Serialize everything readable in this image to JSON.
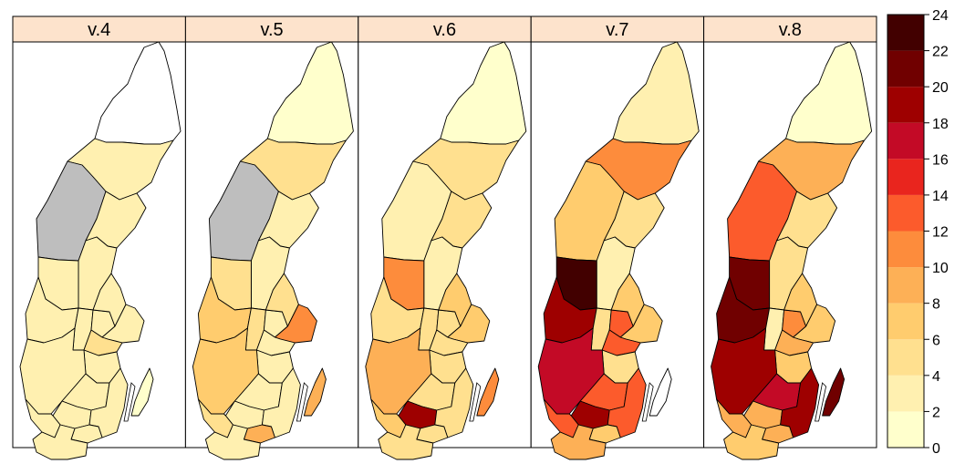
{
  "weeks": [
    "v.4",
    "v.5",
    "v.6",
    "v.7",
    "v.8"
  ],
  "strip_color": "#fde3cc",
  "missing_color": "#bebebe",
  "scale": {
    "ticks": [
      0,
      2,
      4,
      6,
      8,
      10,
      12,
      14,
      16,
      18,
      20,
      22,
      24
    ],
    "labels": [
      "0",
      "2",
      "4",
      "6",
      "8",
      "10",
      "12",
      "14",
      "16",
      "18",
      "20",
      "22",
      "24"
    ],
    "colors": [
      "#ffffcc",
      "#fff0b0",
      "#ffe08f",
      "#ffcc6e",
      "#fdb056",
      "#fd8c3c",
      "#fc5b2c",
      "#e9251e",
      "#c30a26",
      "#9e0000",
      "#700000",
      "#420000",
      "#000000"
    ]
  },
  "regions": [
    "norrbotten",
    "vasterbotten",
    "jamtland",
    "vasternorrland",
    "gavleborg",
    "dalarna",
    "varmland",
    "orebro",
    "vastmanland",
    "uppsala",
    "stockholm",
    "sodermanland",
    "ostergotland",
    "vastra-gotaland",
    "jonkoping",
    "kronoberg",
    "kalmar",
    "gotland",
    "blekinge",
    "halland",
    "skane"
  ],
  "chart_data": {
    "type": "choropleth",
    "facets": [
      "v.4",
      "v.5",
      "v.6",
      "v.7",
      "v.8"
    ],
    "legend": {
      "type": "colorbar",
      "range": [
        0,
        24
      ],
      "placement": "right"
    },
    "values": {
      "v.4": {
        "norrbotten": null,
        "vasterbotten": 3,
        "jamtland": "NA",
        "vasternorrland": 3,
        "gavleborg": 2,
        "dalarna": 3,
        "varmland": 3,
        "orebro": 2,
        "vastmanland": 2,
        "uppsala": 3,
        "stockholm": 3,
        "sodermanland": 5,
        "ostergotland": 3,
        "vastra-gotaland": 3,
        "jonkoping": 3,
        "kronoberg": 2,
        "kalmar": 2,
        "gotland": 1,
        "blekinge": 2,
        "halland": 3,
        "skane": 2
      },
      "v.5": {
        "norrbotten": 1,
        "vasterbotten": 5,
        "jamtland": "NA",
        "vasternorrland": 3,
        "gavleborg": 2,
        "dalarna": 4,
        "varmland": 7,
        "orebro": 5,
        "vastmanland": 3,
        "uppsala": 4,
        "stockholm": 11,
        "sodermanland": 3,
        "ostergotland": 3,
        "vastra-gotaland": 7,
        "jonkoping": 3,
        "kronoberg": 3,
        "kalmar": 3,
        "gotland": 9,
        "blekinge": 9,
        "halland": 5,
        "skane": 2
      },
      "v.6": {
        "norrbotten": 1,
        "vasterbotten": 5,
        "jamtland": 3,
        "vasternorrland": 5,
        "gavleborg": 2,
        "dalarna": 11,
        "varmland": 5,
        "orebro": 5,
        "vastmanland": 5,
        "uppsala": 7,
        "stockholm": 7,
        "sodermanland": 5,
        "ostergotland": 5,
        "vastra-gotaland": 9,
        "jonkoping": 5,
        "kronoberg": 19,
        "kalmar": 5,
        "gotland": 11,
        "blekinge": 5,
        "halland": 7,
        "skane": 5
      },
      "v.7": {
        "norrbotten": 3,
        "vasterbotten": 11,
        "jamtland": 7,
        "vasternorrland": 5,
        "gavleborg": 3,
        "dalarna": 23,
        "varmland": 19,
        "orebro": 5,
        "vastmanland": 13,
        "uppsala": 7,
        "stockholm": 7,
        "sodermanland": 13,
        "ostergotland": 5,
        "vastra-gotaland": 17,
        "jonkoping": 13,
        "kronoberg": 19,
        "kalmar": 13,
        "gotland": null,
        "blekinge": 7,
        "halland": 13,
        "skane": 9
      },
      "v.8": {
        "norrbotten": 1,
        "vasterbotten": 9,
        "jamtland": 13,
        "vasternorrland": 5,
        "gavleborg": 5,
        "dalarna": 21,
        "varmland": 21,
        "orebro": 3,
        "vastmanland": 11,
        "uppsala": 7,
        "stockholm": 7,
        "sodermanland": 9,
        "ostergotland": 7,
        "vastra-gotaland": 19,
        "jonkoping": 17,
        "kronoberg": 9,
        "kalmar": 19,
        "gotland": 21,
        "blekinge": 9,
        "halland": 9,
        "skane": 7
      }
    }
  }
}
